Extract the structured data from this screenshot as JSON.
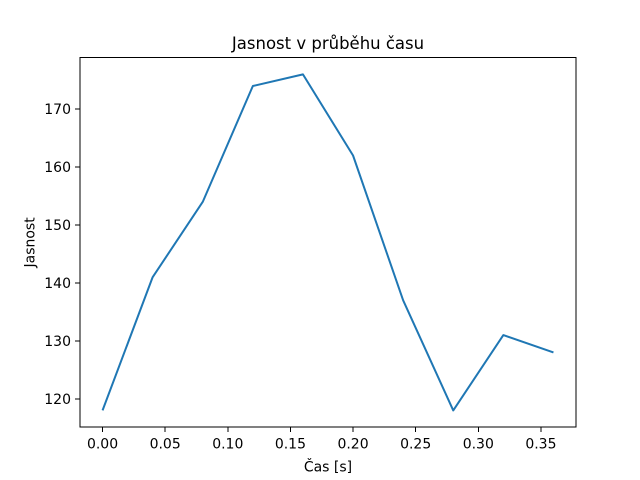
{
  "chart_data": {
    "type": "line",
    "title": "Jasnost v průběhu času",
    "xlabel": "Čas [s]",
    "ylabel": "Jasnost",
    "x": [
      0.0,
      0.04,
      0.08,
      0.12,
      0.16,
      0.2,
      0.24,
      0.28,
      0.32,
      0.36
    ],
    "y": [
      118,
      141,
      154,
      174,
      176,
      162,
      137,
      118,
      131,
      128
    ],
    "xticks": [
      0.0,
      0.05,
      0.1,
      0.15,
      0.2,
      0.25,
      0.3,
      0.35
    ],
    "yticks": [
      120,
      130,
      140,
      150,
      160,
      170
    ],
    "xtick_decimals": 2,
    "xlim": [
      -0.018,
      0.378
    ],
    "ylim": [
      115.1,
      178.9
    ],
    "line_color": "#1f77b4",
    "axes_color": "#000000",
    "background_color": "#ffffff",
    "grid": false,
    "legend": null
  }
}
